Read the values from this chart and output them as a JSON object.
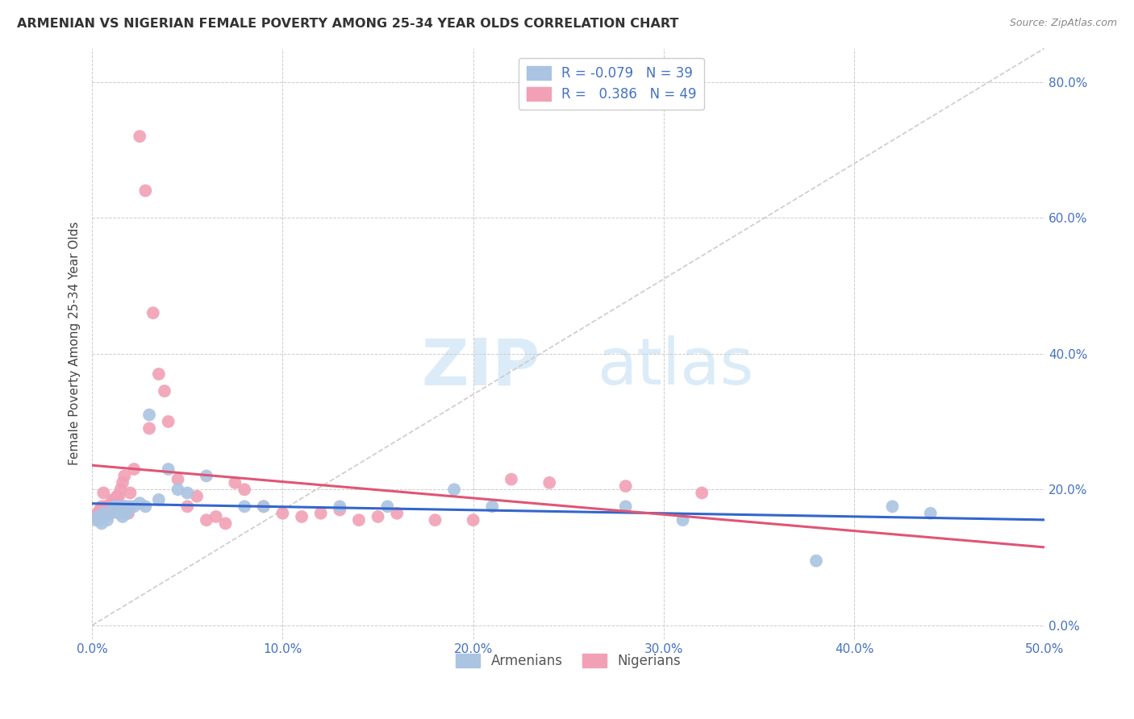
{
  "title": "ARMENIAN VS NIGERIAN FEMALE POVERTY AMONG 25-34 YEAR OLDS CORRELATION CHART",
  "source": "Source: ZipAtlas.com",
  "ylabel": "Female Poverty Among 25-34 Year Olds",
  "xlim": [
    0.0,
    0.5
  ],
  "ylim": [
    -0.02,
    0.85
  ],
  "ytick_positions": [
    0.0,
    0.2,
    0.4,
    0.6,
    0.8
  ],
  "ytick_labels": [
    "0.0%",
    "20.0%",
    "40.0%",
    "60.0%",
    "80.0%"
  ],
  "xtick_positions": [
    0.0,
    0.1,
    0.2,
    0.3,
    0.4,
    0.5
  ],
  "xtick_labels": [
    "0.0%",
    "10.0%",
    "20.0%",
    "30.0%",
    "40.0%",
    "50.0%"
  ],
  "armenian_color": "#aac4e2",
  "nigerian_color": "#f2a0b5",
  "armenian_line_color": "#3366cc",
  "nigerian_line_color": "#e05575",
  "diagonal_color": "#cccccc",
  "watermark": "ZIPatlas",
  "armenian_x": [
    0.002,
    0.003,
    0.004,
    0.005,
    0.006,
    0.007,
    0.008,
    0.009,
    0.01,
    0.011,
    0.012,
    0.013,
    0.014,
    0.015,
    0.016,
    0.017,
    0.018,
    0.019,
    0.02,
    0.022,
    0.025,
    0.028,
    0.03,
    0.035,
    0.04,
    0.045,
    0.05,
    0.06,
    0.08,
    0.09,
    0.13,
    0.155,
    0.19,
    0.21,
    0.28,
    0.31,
    0.38,
    0.42,
    0.44
  ],
  "armenian_y": [
    0.155,
    0.16,
    0.155,
    0.15,
    0.165,
    0.16,
    0.155,
    0.165,
    0.165,
    0.17,
    0.175,
    0.17,
    0.165,
    0.175,
    0.16,
    0.175,
    0.165,
    0.17,
    0.175,
    0.175,
    0.18,
    0.175,
    0.31,
    0.185,
    0.23,
    0.2,
    0.195,
    0.22,
    0.175,
    0.175,
    0.175,
    0.175,
    0.2,
    0.175,
    0.175,
    0.155,
    0.095,
    0.175,
    0.165
  ],
  "nigerian_x": [
    0.002,
    0.003,
    0.004,
    0.005,
    0.006,
    0.007,
    0.008,
    0.009,
    0.01,
    0.011,
    0.012,
    0.013,
    0.014,
    0.015,
    0.016,
    0.017,
    0.018,
    0.019,
    0.02,
    0.022,
    0.025,
    0.028,
    0.03,
    0.032,
    0.035,
    0.038,
    0.04,
    0.045,
    0.05,
    0.055,
    0.06,
    0.065,
    0.07,
    0.075,
    0.08,
    0.09,
    0.1,
    0.11,
    0.12,
    0.13,
    0.14,
    0.15,
    0.16,
    0.18,
    0.2,
    0.22,
    0.24,
    0.28,
    0.32
  ],
  "nigerian_y": [
    0.16,
    0.165,
    0.17,
    0.175,
    0.195,
    0.175,
    0.165,
    0.175,
    0.18,
    0.185,
    0.175,
    0.19,
    0.19,
    0.2,
    0.21,
    0.22,
    0.175,
    0.165,
    0.195,
    0.23,
    0.72,
    0.64,
    0.29,
    0.46,
    0.37,
    0.345,
    0.3,
    0.215,
    0.175,
    0.19,
    0.155,
    0.16,
    0.15,
    0.21,
    0.2,
    0.175,
    0.165,
    0.16,
    0.165,
    0.17,
    0.155,
    0.16,
    0.165,
    0.155,
    0.155,
    0.215,
    0.21,
    0.205,
    0.195
  ]
}
